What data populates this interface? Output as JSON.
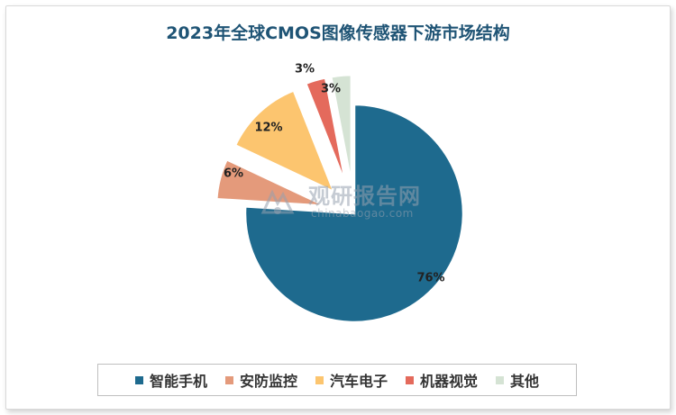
{
  "chart_data": {
    "type": "pie",
    "title": "2023年全球CMOS图像传感器下游市场结构",
    "slices": [
      {
        "label": "智能手机",
        "value": 76,
        "value_label": "76%",
        "color": "#1e6a8e",
        "exploded": false
      },
      {
        "label": "安防监控",
        "value": 6,
        "value_label": "6%",
        "color": "#e49a7b",
        "exploded": true
      },
      {
        "label": "汽车电子",
        "value": 12,
        "value_label": "12%",
        "color": "#fcc56f",
        "exploded": true
      },
      {
        "label": "机器视觉",
        "value": 3,
        "value_label": "3%",
        "color": "#e46a5c",
        "exploded": true
      },
      {
        "label": "其他",
        "value": 3,
        "value_label": "3%",
        "color": "#d5e3d4",
        "exploded": true
      }
    ],
    "legend_position": "bottom"
  },
  "watermark": {
    "text": "观研报告网",
    "subtext": "chinabaogao.com"
  }
}
